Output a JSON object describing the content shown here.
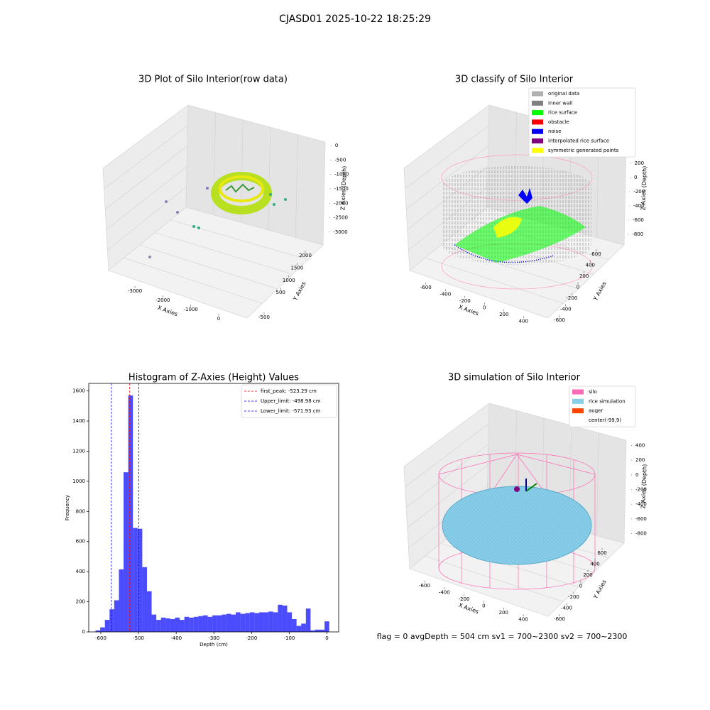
{
  "title": "CJASD01 2025-10-22 18:25:29",
  "footer": "flag = 0    avgDepth = 504 cm  sv1 = 700~2300  sv2 = 700~2300",
  "chart_data": [
    {
      "type": "scatter3d",
      "title": "3D Plot of Silo Interior(row data)",
      "x_label": "X Axies",
      "y_label": "Y Axies",
      "z_label": "Z Axies (Depth)",
      "xlim": [
        -3700,
        600
      ],
      "xticks": [
        -3000,
        -2000,
        -1000,
        0
      ],
      "ylim": [
        -800,
        2300
      ],
      "yticks": [
        -500,
        500,
        1000,
        1500,
        2000
      ],
      "zlim": [
        -3300,
        200
      ],
      "zticks": [
        0,
        -500,
        -1000,
        -1500,
        -2000,
        -2500,
        -3000
      ]
    },
    {
      "type": "scatter3d",
      "title": "3D classify of Silo Interior",
      "x_label": "X Axies",
      "y_label": "Y Axies",
      "z_label": "Z Axies (Depth)",
      "xlim": [
        -700,
        500
      ],
      "xticks": [
        -600,
        -400,
        -200,
        0,
        200,
        400
      ],
      "ylim": [
        -700,
        700
      ],
      "yticks": [
        -600,
        -400,
        -200,
        0,
        200,
        400,
        600
      ],
      "zlim": [
        -900,
        300
      ],
      "zticks": [
        200,
        0,
        -200,
        -400,
        -600,
        -800
      ],
      "legend": [
        {
          "name": "original data",
          "color": "#b0b0b0"
        },
        {
          "name": "inner wall",
          "color": "#808080"
        },
        {
          "name": "rice surface",
          "color": "#00ff00"
        },
        {
          "name": "obstacle",
          "color": "#ff0000"
        },
        {
          "name": "noise",
          "color": "#0000ff"
        },
        {
          "name": "interpolated rice surface",
          "color": "#800080"
        },
        {
          "name": "symmetric generated points",
          "color": "#ffff00"
        }
      ]
    },
    {
      "type": "histogram",
      "title": "Histogram of Z-Axies (Height) Values",
      "x_label": "Depth (cm)",
      "y_label": "Frequency",
      "color": "#0000ff",
      "bins": [
        -614,
        -601.6,
        -589.2,
        -576.8,
        -564.4,
        -552,
        -539.6,
        -527.2,
        -514.8,
        -502.4,
        -490,
        -477.6,
        -465.2,
        -452.8,
        -440.4,
        -428,
        -415.6,
        -403.2,
        -390.8,
        -378.4,
        -366,
        -353.6,
        -341.2,
        -328.8,
        -316.4,
        -304,
        -291.6,
        -279.2,
        -266.8,
        -254.4,
        -242,
        -229.6,
        -217.2,
        -204.8,
        -192.4,
        -180,
        -167.6,
        -155.2,
        -142.8,
        -130.4,
        -118,
        -105.6,
        -93.2,
        -80.8,
        -68.4,
        -56,
        -43.6,
        -31.2,
        -18.8,
        -6.4,
        6
      ],
      "values": [
        10,
        30,
        80,
        150,
        210,
        415,
        1060,
        1570,
        690,
        685,
        430,
        270,
        115,
        80,
        95,
        90,
        85,
        95,
        80,
        100,
        95,
        100,
        105,
        110,
        100,
        110,
        110,
        115,
        120,
        115,
        130,
        120,
        125,
        130,
        125,
        130,
        130,
        135,
        130,
        180,
        175,
        130,
        85,
        40,
        55,
        155,
        10,
        15,
        15,
        70
      ],
      "xlim": [
        -632,
        31
      ],
      "xticks": [
        -600,
        -500,
        -400,
        -300,
        -200,
        -100,
        0
      ],
      "ylim": [
        0,
        1650
      ],
      "yticks": [
        0,
        200,
        400,
        600,
        800,
        1000,
        1200,
        1400,
        1600
      ],
      "vlines": [
        {
          "name": "first_peak: -523.29 cm",
          "value": -523.29,
          "color": "#ff0000"
        },
        {
          "name": "Upper_limit: -498.98 cm",
          "value": -498.98,
          "color": "#0000ff"
        },
        {
          "name": "Lower_limit: -571.93 cm",
          "value": -571.93,
          "color": "#0000ff"
        }
      ]
    },
    {
      "type": "scatter3d",
      "title": "3D simulation of Silo Interior",
      "x_label": "X Axies",
      "y_label": "Y Axies",
      "z_label": "Z Axies (Depth)",
      "xlim": [
        -700,
        500
      ],
      "xticks": [
        -600,
        -400,
        -200,
        0,
        200,
        400
      ],
      "ylim": [
        -700,
        700
      ],
      "yticks": [
        -600,
        -400,
        -200,
        0,
        200,
        400,
        600
      ],
      "zlim": [
        -900,
        500
      ],
      "zticks": [
        400,
        200,
        0,
        -200,
        -400,
        -600,
        -800
      ],
      "legend": [
        {
          "name": "silo",
          "color": "#ff69b4"
        },
        {
          "name": "rice simulation",
          "color": "#87ceeb"
        },
        {
          "name": "auger",
          "color": "#ff4500"
        },
        {
          "name": "center(-99,9)",
          "color": "#ffffff"
        }
      ]
    }
  ]
}
